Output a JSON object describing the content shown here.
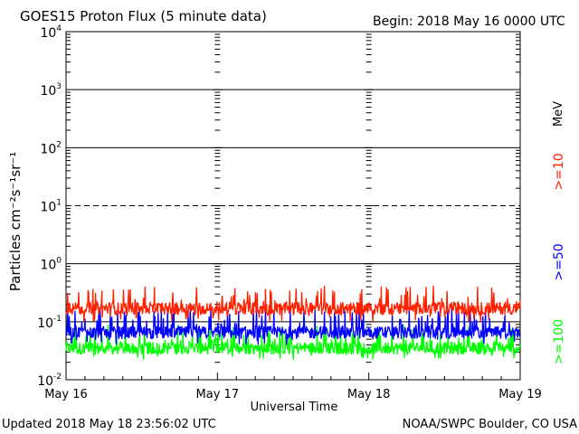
{
  "header": {
    "title": "GOES15 Proton Flux (5 minute data)",
    "begin": "Begin: 2018 May 16 0000 UTC"
  },
  "footer": {
    "updated": "Updated 2018 May 18 23:56:02 UTC",
    "credit": "NOAA/SWPC Boulder, CO USA"
  },
  "chart_data": {
    "type": "line",
    "title": "GOES15 Proton Flux (5 minute data)",
    "xlabel": "Universal Time",
    "ylabel": "Particles cm⁻²s⁻¹sr⁻¹",
    "yscale": "log",
    "ylim": [
      0.01,
      10000
    ],
    "y_ticks": [
      {
        "value": 0.01,
        "base": "10",
        "exp": "-2"
      },
      {
        "value": 0.1,
        "base": "10",
        "exp": "-1"
      },
      {
        "value": 1,
        "base": "10",
        "exp": "0"
      },
      {
        "value": 10,
        "base": "10",
        "exp": "1"
      },
      {
        "value": 100,
        "base": "10",
        "exp": "2"
      },
      {
        "value": 1000,
        "base": "10",
        "exp": "3"
      },
      {
        "value": 10000,
        "base": "10",
        "exp": "4"
      }
    ],
    "x_ticks": [
      "May 16",
      "May 17",
      "May 18",
      "May 19"
    ],
    "x_range_hours": [
      0,
      72
    ],
    "grid": {
      "solid": [
        1,
        100,
        1000
      ],
      "dashed": [
        10
      ],
      "thresholds_extra": [
        0.1
      ]
    },
    "unit_label": "MeV",
    "series": [
      {
        "name": ">=10",
        "color": "#ff2000",
        "baseline": 0.17,
        "min": 0.1,
        "max": 0.42
      },
      {
        "name": ">=50",
        "color": "#0000ff",
        "baseline": 0.065,
        "min": 0.04,
        "max": 0.18
      },
      {
        "name": ">=100",
        "color": "#00ff00",
        "baseline": 0.035,
        "min": 0.022,
        "max": 0.09
      }
    ]
  }
}
